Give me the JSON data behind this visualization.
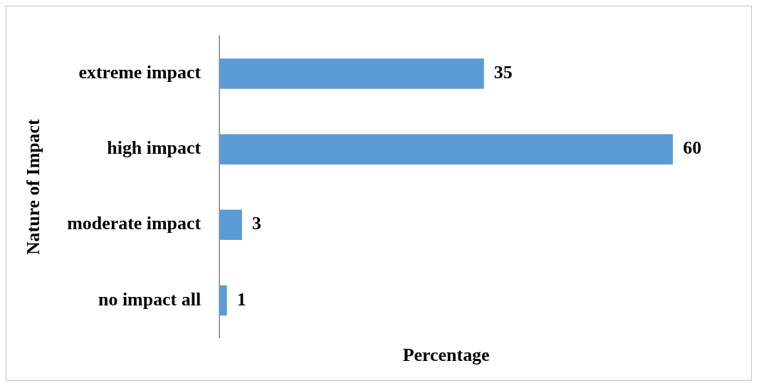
{
  "chart_data": {
    "type": "bar",
    "orientation": "horizontal",
    "xlabel": "Percentage",
    "ylabel": "Nature of Impact",
    "categories": [
      "extreme impact",
      "high impact",
      "moderate impact",
      "no impact all"
    ],
    "values": [
      35,
      60,
      3,
      1
    ],
    "color": "#5b9bd5",
    "data_labels": true,
    "grid": false,
    "legend": false,
    "tick_labels": "y"
  }
}
